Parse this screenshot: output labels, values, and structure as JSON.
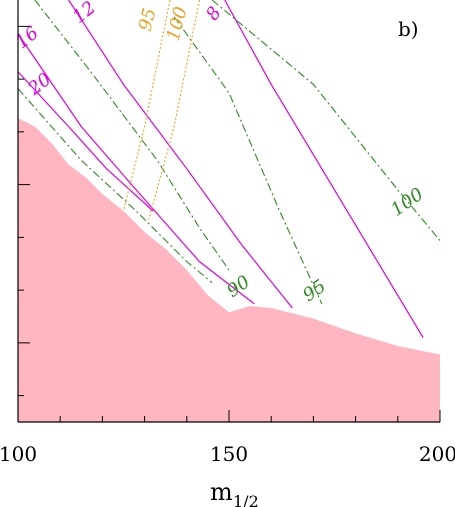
{
  "chart_data": {
    "type": "line",
    "panel_label": "b)",
    "xlabel": "m",
    "xlabel_sub": "1/2",
    "ylabel": "",
    "xlim": [
      100,
      200
    ],
    "ylim": [
      0,
      1
    ],
    "x_ticks": [
      100,
      150,
      200
    ],
    "y_ticks_unlabeled": 8,
    "colors": {
      "excluded_region": "#ffb6c1",
      "magenta": "#e000e0",
      "green": "#2e8b22",
      "orange": "#f0a020"
    },
    "excluded_region": {
      "name": "",
      "points": [
        [
          100,
          0.72
        ],
        [
          104,
          0.7
        ],
        [
          108,
          0.66
        ],
        [
          112,
          0.61
        ],
        [
          116,
          0.58
        ],
        [
          120,
          0.54
        ],
        [
          125,
          0.5
        ],
        [
          130,
          0.45
        ],
        [
          135,
          0.41
        ],
        [
          140,
          0.36
        ],
        [
          145,
          0.3
        ],
        [
          150,
          0.26
        ],
        [
          155,
          0.275
        ],
        [
          160,
          0.27
        ],
        [
          170,
          0.245
        ],
        [
          180,
          0.21
        ],
        [
          190,
          0.18
        ],
        [
          200,
          0.16
        ]
      ]
    },
    "series": [
      {
        "label": "8",
        "color": "magenta",
        "style": "solid",
        "points": [
          [
            149,
            1.0
          ],
          [
            160,
            0.8
          ],
          [
            172,
            0.6
          ],
          [
            184,
            0.4
          ],
          [
            196,
            0.2
          ]
        ]
      },
      {
        "label": "12",
        "color": "magenta",
        "style": "solid",
        "points": [
          [
            112,
            1.0
          ],
          [
            125,
            0.8
          ],
          [
            140,
            0.6
          ],
          [
            153,
            0.42
          ],
          [
            165,
            0.27
          ]
        ]
      },
      {
        "label": "16",
        "color": "magenta",
        "style": "solid",
        "points": [
          [
            100,
            0.92
          ],
          [
            115,
            0.7
          ],
          [
            128,
            0.55
          ],
          [
            143,
            0.38
          ],
          [
            156,
            0.28
          ]
        ]
      },
      {
        "label": "20",
        "color": "magenta",
        "style": "solid",
        "points": [
          [
            100,
            0.83
          ],
          [
            112,
            0.7
          ],
          [
            121,
            0.6
          ],
          [
            132,
            0.5
          ]
        ]
      },
      {
        "label": "90",
        "color": "green",
        "style": "dashdot",
        "points": [
          [
            104,
            1.0
          ],
          [
            118,
            0.82
          ],
          [
            133,
            0.62
          ],
          [
            143,
            0.46
          ],
          [
            150,
            0.36
          ]
        ]
      },
      {
        "label": "",
        "color": "green",
        "style": "dashdot",
        "points": [
          [
            100,
            0.79
          ],
          [
            115,
            0.62
          ],
          [
            128,
            0.5
          ],
          [
            140,
            0.38
          ],
          [
            146,
            0.33
          ]
        ]
      },
      {
        "label": "95",
        "color": "green",
        "style": "dashdot",
        "points": [
          [
            137,
            0.96
          ],
          [
            150,
            0.78
          ],
          [
            162,
            0.5
          ],
          [
            172,
            0.28
          ]
        ]
      },
      {
        "label": "100",
        "color": "green",
        "style": "dashdot",
        "points": [
          [
            146,
            1.0
          ],
          [
            170,
            0.8
          ],
          [
            190,
            0.55
          ],
          [
            200,
            0.43
          ]
        ]
      },
      {
        "label": "95",
        "color": "orange",
        "style": "dotted",
        "points": [
          [
            136,
            1.0
          ],
          [
            130,
            0.7
          ],
          [
            125,
            0.5
          ]
        ]
      },
      {
        "label": "100",
        "color": "orange",
        "style": "dotted",
        "points": [
          [
            143,
            1.0
          ],
          [
            137,
            0.7
          ],
          [
            131,
            0.48
          ]
        ]
      }
    ],
    "contour_labels": [
      {
        "text": "8",
        "color": "magenta",
        "x": 147.5,
        "y": 0.96,
        "rotate": -55
      },
      {
        "text": "12",
        "color": "magenta",
        "x": 116.5,
        "y": 0.96,
        "rotate": -38
      },
      {
        "text": "16",
        "color": "magenta",
        "x": 103,
        "y": 0.9,
        "rotate": -38
      },
      {
        "text": "20",
        "color": "magenta",
        "x": 106,
        "y": 0.79,
        "rotate": -38
      },
      {
        "text": "95",
        "color": "orange",
        "x": 132,
        "y": 0.95,
        "rotate": -75
      },
      {
        "text": "100",
        "color": "orange",
        "x": 139,
        "y": 0.94,
        "rotate": -75
      },
      {
        "text": "90",
        "color": "green",
        "x": 153,
        "y": 0.31,
        "rotate": -35
      },
      {
        "text": "95",
        "color": "green",
        "x": 171,
        "y": 0.3,
        "rotate": -35
      },
      {
        "text": "100",
        "color": "green",
        "x": 193,
        "y": 0.51,
        "rotate": -35
      }
    ]
  }
}
